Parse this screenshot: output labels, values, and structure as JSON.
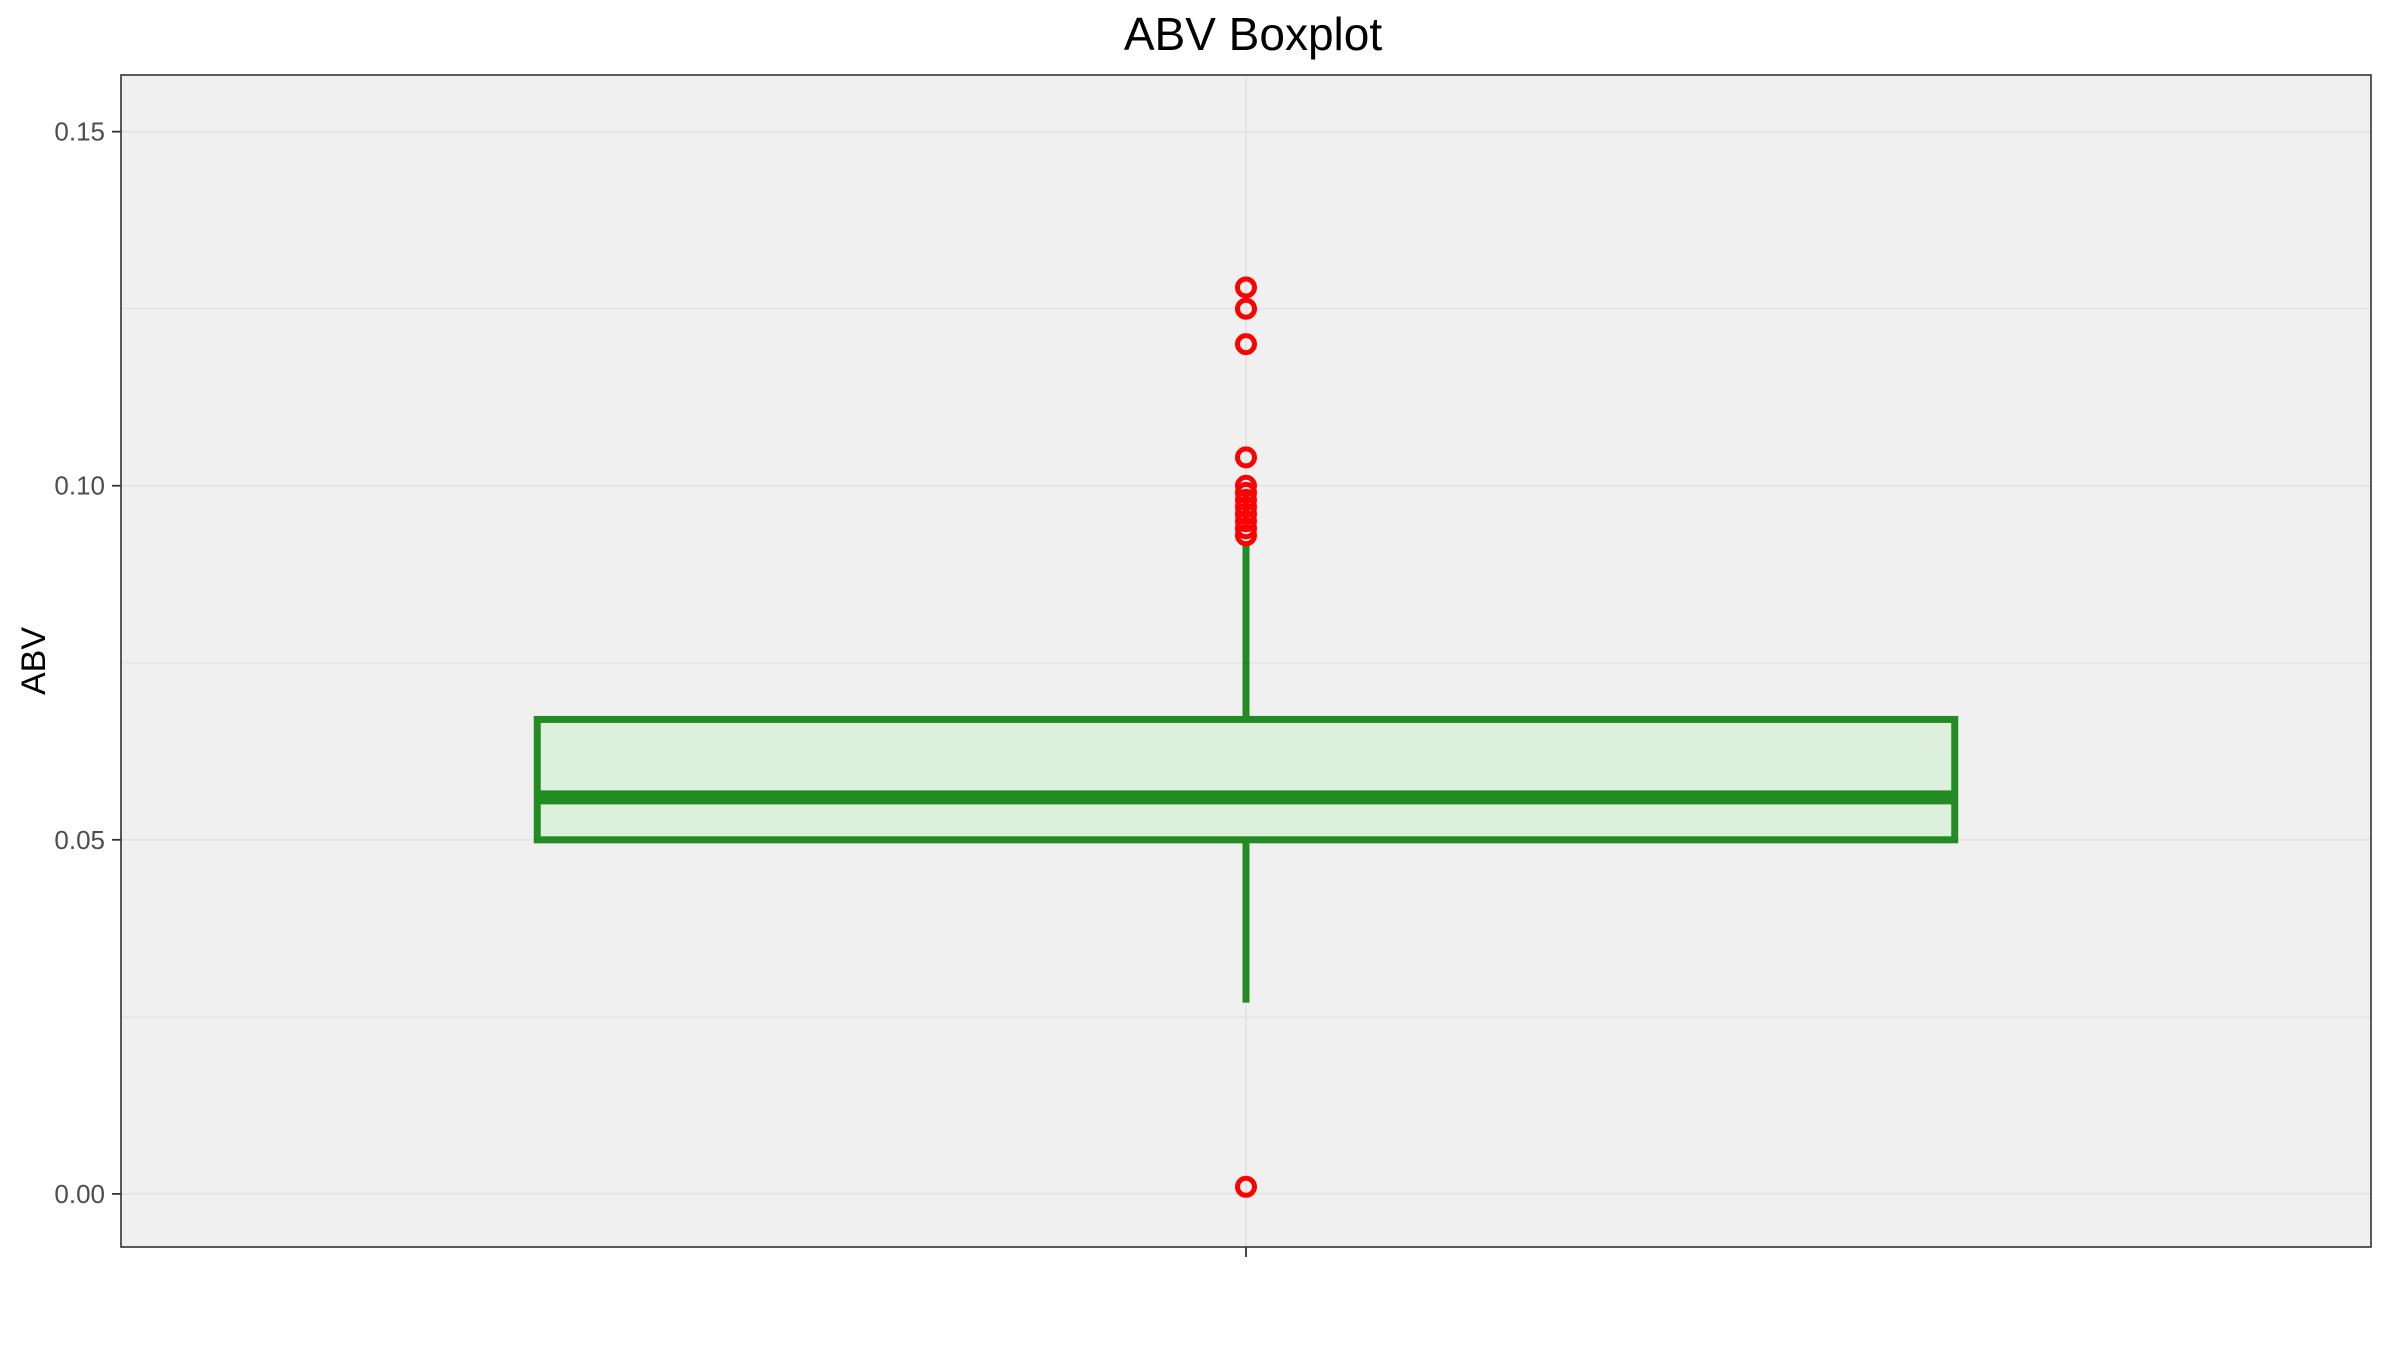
{
  "chart_data": {
    "type": "boxplot",
    "title": "ABV Boxplot",
    "xlabel": "",
    "ylabel": "ABV",
    "ylim": [
      -0.0075,
      0.158
    ],
    "yticks": [
      0.0,
      0.05,
      0.1,
      0.15
    ],
    "ytick_labels": [
      "0.00",
      "0.05",
      "0.10",
      "0.15"
    ],
    "grid": true,
    "box": {
      "q1": 0.05,
      "median": 0.056,
      "q3": 0.067,
      "whisker_low": 0.027,
      "whisker_high": 0.092
    },
    "outliers": [
      0.001,
      0.093,
      0.094,
      0.095,
      0.096,
      0.097,
      0.098,
      0.099,
      0.1,
      0.104,
      0.12,
      0.125,
      0.128
    ],
    "colors": {
      "box_line": "#228b22",
      "box_fill": "#dcf0dc",
      "outlier": "#ff0000",
      "panel": "#f0f0f0",
      "grid": "#e4e4e4"
    }
  }
}
